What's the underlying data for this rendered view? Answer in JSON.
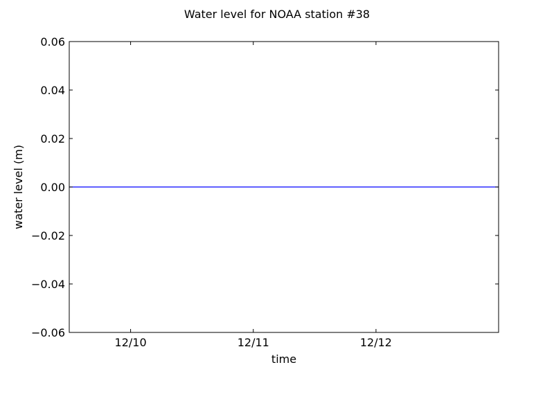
{
  "chart_data": {
    "type": "line",
    "title": "Water level for NOAA station #38",
    "xlabel": "time",
    "ylabel": "water level (m)",
    "xlim": [
      "12/09 12:00",
      "12/12 23:59"
    ],
    "ylim": [
      -0.06,
      0.06
    ],
    "xticks": [
      {
        "x": "12/10 00:00",
        "label": "12/10"
      },
      {
        "x": "12/11 00:00",
        "label": "12/11"
      },
      {
        "x": "12/12 00:00",
        "label": "12/12"
      }
    ],
    "yticks": [
      {
        "value": 0.06,
        "label": "0.06"
      },
      {
        "value": 0.04,
        "label": "0.04"
      },
      {
        "value": 0.02,
        "label": "0.02"
      },
      {
        "value": 0.0,
        "label": "0.00"
      },
      {
        "value": -0.02,
        "label": "−0.02"
      },
      {
        "value": -0.04,
        "label": "−0.04"
      },
      {
        "value": -0.06,
        "label": "−0.06"
      }
    ],
    "series": [
      {
        "color": "#0000ff",
        "x": [
          "12/09 12:00",
          "12/12 23:59"
        ],
        "values": [
          0.0,
          0.0
        ]
      }
    ],
    "grid": false,
    "legend": "none"
  }
}
